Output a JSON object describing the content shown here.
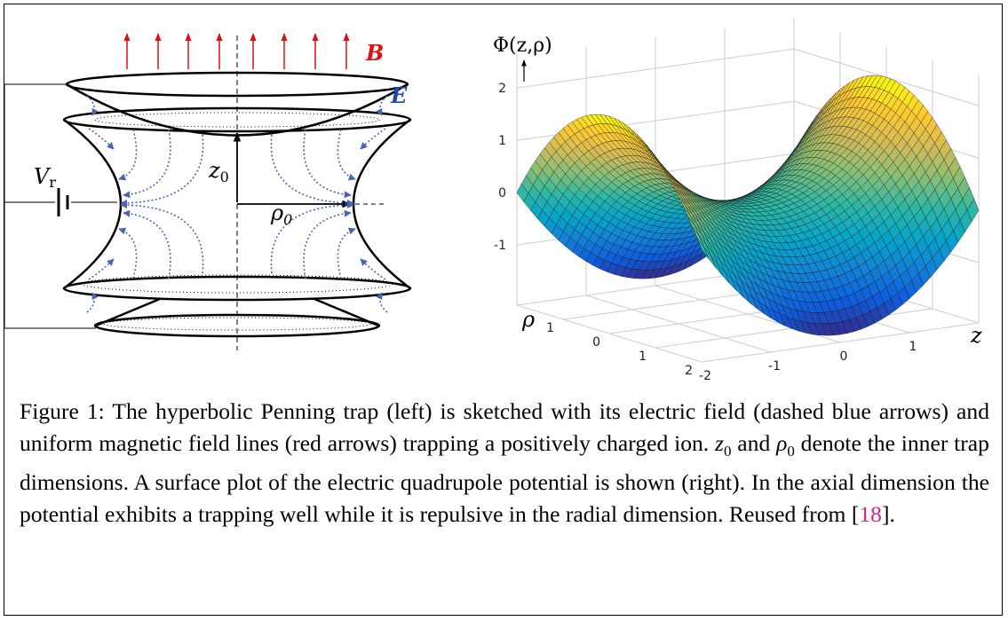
{
  "figure": {
    "left": {
      "B": "B",
      "E": "E",
      "V": "V",
      "V_sub": "r",
      "z": "z",
      "z_sub": "0",
      "rho": "ρ",
      "rho_sub": "0"
    },
    "right": {
      "title": "Φ(z,ρ)",
      "vertical_ticks": [
        "2",
        "1",
        "0",
        "-1"
      ],
      "rho_ticks": [
        "1",
        "0",
        "1",
        "2"
      ],
      "z_ticks": [
        "-2",
        "-1",
        "0",
        "1"
      ],
      "rho_axis": "ρ",
      "z_axis": "z"
    },
    "caption": {
      "part1": "Figure 1: The hyperbolic Penning trap (left) is sketched with its electric field (dashed blue arrows) and uniform magnetic field lines (red arrows) trapping a positively charged ion. ",
      "z": "z",
      "z_sub": "0",
      "and": " and ",
      "rho": "ρ",
      "rho_sub": "0",
      "part2": " denote the inner trap dimensions. A surface plot of the electric quadrupole potential is shown (right). In the axial dimension the potential exhibits a trapping well while it is repulsive in the radial dimension. Reused from [",
      "ref": "18",
      "part3": "]."
    }
  }
}
